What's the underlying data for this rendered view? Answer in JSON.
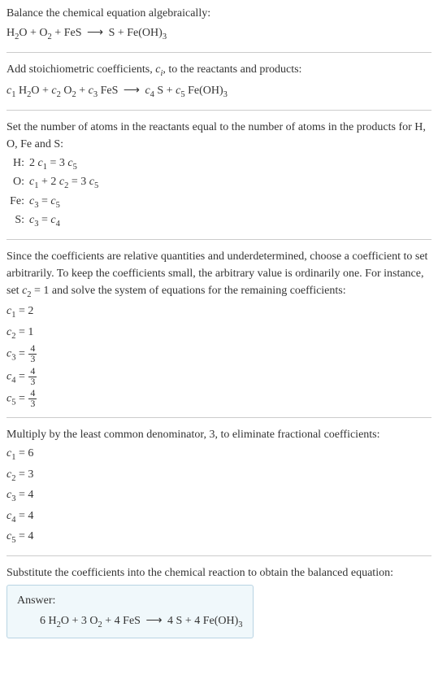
{
  "colors": {
    "text": "#333333",
    "background": "#ffffff",
    "divider": "#cccccc",
    "answer_bg": "#f0f8fb",
    "answer_border": "#b8d4e3"
  },
  "typography": {
    "body_fontsize": 14,
    "sub_scale": 0.75
  },
  "intro": {
    "line1": "Balance the chemical equation algebraically:",
    "equation": {
      "lhs": [
        {
          "formula": "H",
          "sub1": "2",
          "tail": "O"
        },
        {
          "formula": "O",
          "sub1": "2"
        },
        {
          "formula": "FeS"
        }
      ],
      "rhs": [
        {
          "formula": "S"
        },
        {
          "formula": "Fe(OH)",
          "sub1": "3"
        }
      ]
    }
  },
  "stoich": {
    "text": "Add stoichiometric coefficients, ",
    "var": "c",
    "varsub": "i",
    "text2": ", to the reactants and products:",
    "equation": {
      "lhs": [
        {
          "coef": "c",
          "csub": "1",
          "formula": "H",
          "sub1": "2",
          "tail": "O"
        },
        {
          "coef": "c",
          "csub": "2",
          "formula": "O",
          "sub1": "2"
        },
        {
          "coef": "c",
          "csub": "3",
          "formula": "FeS"
        }
      ],
      "rhs": [
        {
          "coef": "c",
          "csub": "4",
          "formula": "S"
        },
        {
          "coef": "c",
          "csub": "5",
          "formula": "Fe(OH)",
          "sub1": "3"
        }
      ]
    }
  },
  "atoms": {
    "intro": "Set the number of atoms in the reactants equal to the number of atoms in the products for H, O, Fe and S:",
    "rows": [
      {
        "el": "H:",
        "lhs_coef": "2",
        "lhs_var": "c",
        "lhs_sub": "1",
        "eq": "= 3",
        "rhs_var": "c",
        "rhs_sub": "5"
      },
      {
        "el": "O:",
        "terms": "c₁ + 2 c₂ = 3 c₅"
      },
      {
        "el": "Fe:",
        "terms": "c₃ = c₅"
      },
      {
        "el": "S:",
        "terms": "c₃ = c₄"
      }
    ]
  },
  "arbitrary": {
    "text": "Since the coefficients are relative quantities and underdetermined, choose a coefficient to set arbitrarily. To keep the coefficients small, the arbitrary value is ordinarily one. For instance, set ",
    "setvar": "c",
    "setsub": "2",
    "seteq": " = 1 and solve the system of equations for the remaining coefficients:",
    "coeffs": [
      {
        "var": "c",
        "sub": "1",
        "val": "2",
        "frac": false
      },
      {
        "var": "c",
        "sub": "2",
        "val": "1",
        "frac": false
      },
      {
        "var": "c",
        "sub": "3",
        "num": "4",
        "den": "3",
        "frac": true
      },
      {
        "var": "c",
        "sub": "4",
        "num": "4",
        "den": "3",
        "frac": true
      },
      {
        "var": "c",
        "sub": "5",
        "num": "4",
        "den": "3",
        "frac": true
      }
    ]
  },
  "multiply": {
    "text": "Multiply by the least common denominator, 3, to eliminate fractional coefficients:",
    "coeffs": [
      {
        "var": "c",
        "sub": "1",
        "val": "6"
      },
      {
        "var": "c",
        "sub": "2",
        "val": "3"
      },
      {
        "var": "c",
        "sub": "3",
        "val": "4"
      },
      {
        "var": "c",
        "sub": "4",
        "val": "4"
      },
      {
        "var": "c",
        "sub": "5",
        "val": "4"
      }
    ]
  },
  "final": {
    "text": "Substitute the coefficients into the chemical reaction to obtain the balanced equation:",
    "answer_label": "Answer:",
    "equation": {
      "lhs": [
        {
          "n": "6",
          "formula": "H",
          "sub1": "2",
          "tail": "O"
        },
        {
          "n": "3",
          "formula": "O",
          "sub1": "2"
        },
        {
          "n": "4",
          "formula": "FeS"
        }
      ],
      "rhs": [
        {
          "n": "4",
          "formula": "S"
        },
        {
          "n": "4",
          "formula": "Fe(OH)",
          "sub1": "3"
        }
      ]
    }
  },
  "arrow": "⟶"
}
